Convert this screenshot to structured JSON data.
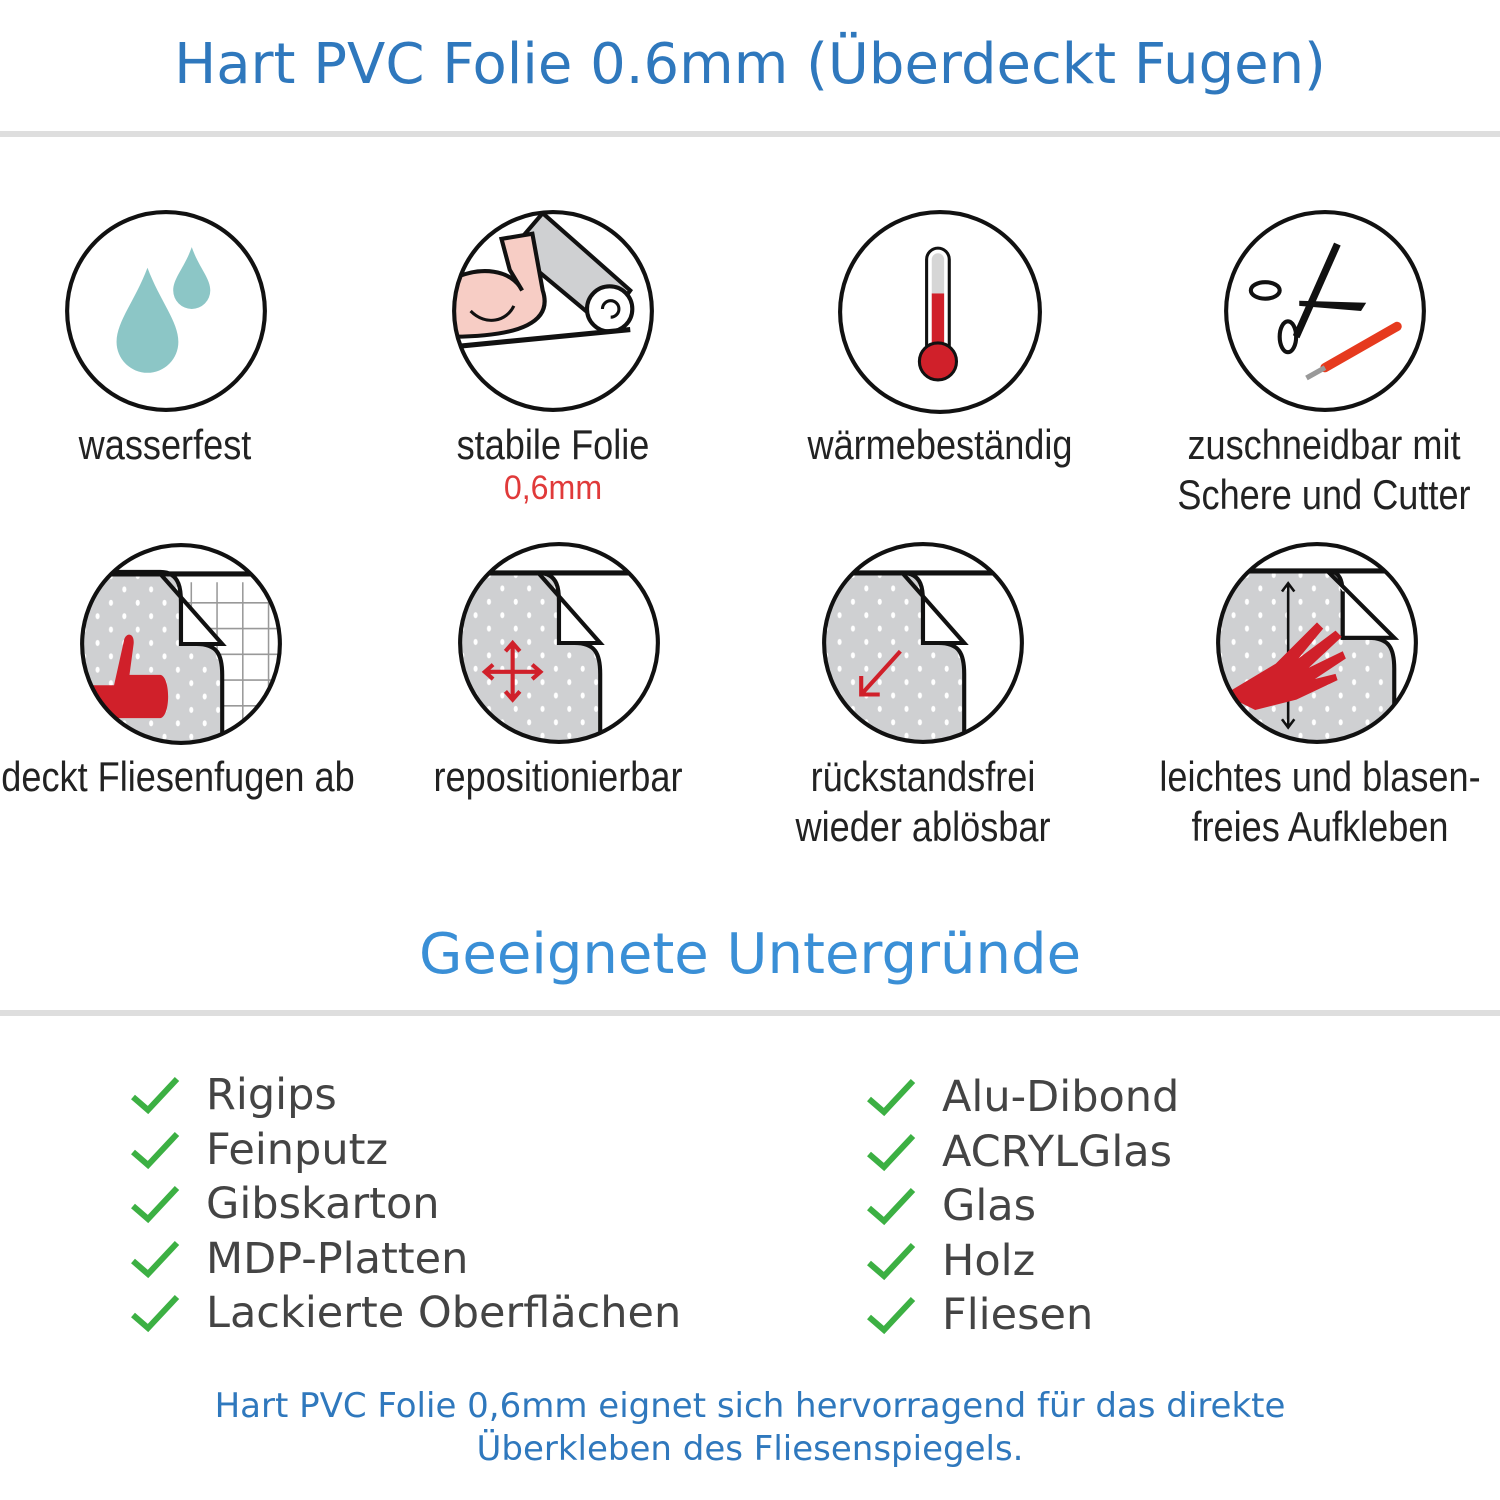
{
  "header": {
    "title": "Hart PVC Folie 0.6mm (Überdeckt Fugen)"
  },
  "features": [
    {
      "icon": "water-drops-icon",
      "label": "wasserfest"
    },
    {
      "icon": "strong-arm-roll-icon",
      "label": "stabile Folie",
      "sublabel": "0,6mm"
    },
    {
      "icon": "thermometer-icon",
      "label": "wärmebeständig"
    },
    {
      "icon": "scissors-cutter-icon",
      "label_line1": "zuschneidbar mit",
      "label_line2": "Schere und Cutter"
    },
    {
      "icon": "thumbs-up-tiles-icon",
      "label": "deckt Fliesenfugen ab"
    },
    {
      "icon": "move-arrows-icon",
      "label": "repositionierbar"
    },
    {
      "icon": "peel-arrow-icon",
      "label_line1": "rückstandsfrei",
      "label_line2": "wieder ablösbar"
    },
    {
      "icon": "hand-smooth-icon",
      "label_line1": "leichtes und blasen-",
      "label_line2": "freies Aufkleben"
    }
  ],
  "surfaces": {
    "title": "Geeignete Untergründe",
    "left": [
      "Rigips",
      "Feinputz",
      "Gibskarton",
      "MDP-Platten",
      "Lackierte Oberflächen"
    ],
    "right": [
      "Alu-Dibond",
      "ACRYLGlas",
      "Glas",
      "Holz",
      "Fliesen"
    ]
  },
  "footer": {
    "line1": "Hart PVC Folie 0,6mm eignet sich hervorragend für das direkte",
    "line2": "Überkleben des Fliesenspiegels."
  },
  "colors": {
    "title_blue": "#2f78bd",
    "check_green": "#3cb043",
    "accent_red": "#d0202a",
    "drop_teal": "#8cc6c6"
  }
}
